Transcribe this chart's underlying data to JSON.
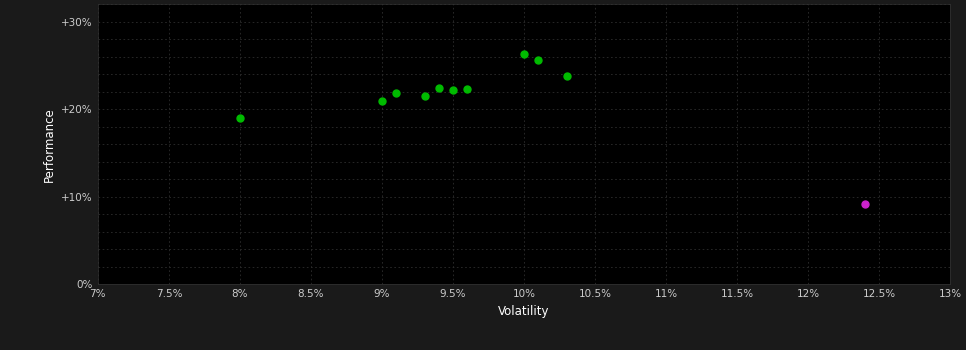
{
  "background_color": "#1a1a1a",
  "plot_bg_color": "#000000",
  "grid_color": "#2a2a2a",
  "xlabel": "Volatility",
  "ylabel": "Performance",
  "xlim": [
    0.07,
    0.13
  ],
  "ylim": [
    0.0,
    0.32
  ],
  "xticks": [
    0.07,
    0.075,
    0.08,
    0.085,
    0.09,
    0.095,
    0.1,
    0.105,
    0.11,
    0.115,
    0.12,
    0.125,
    0.13
  ],
  "yticks": [
    0.0,
    0.02,
    0.04,
    0.06,
    0.08,
    0.1,
    0.12,
    0.14,
    0.16,
    0.18,
    0.2,
    0.22,
    0.24,
    0.26,
    0.28,
    0.3,
    0.32
  ],
  "ytick_labels_show": [
    0.0,
    0.1,
    0.2,
    0.3
  ],
  "ytick_labels": [
    "0%",
    "+10%",
    "+20%",
    "+30%"
  ],
  "green_points": [
    [
      0.08,
      0.19
    ],
    [
      0.09,
      0.21
    ],
    [
      0.091,
      0.218
    ],
    [
      0.093,
      0.215
    ],
    [
      0.094,
      0.224
    ],
    [
      0.095,
      0.222
    ],
    [
      0.096,
      0.223
    ],
    [
      0.1,
      0.263
    ],
    [
      0.101,
      0.256
    ],
    [
      0.103,
      0.238
    ]
  ],
  "magenta_points": [
    [
      0.124,
      0.092
    ]
  ],
  "green_color": "#00bb00",
  "magenta_color": "#cc22cc",
  "dot_size": 25,
  "axis_label_color": "#ffffff",
  "tick_label_color": "#cccccc",
  "tick_label_fontsize": 7.5,
  "axis_label_fontsize": 8.5
}
